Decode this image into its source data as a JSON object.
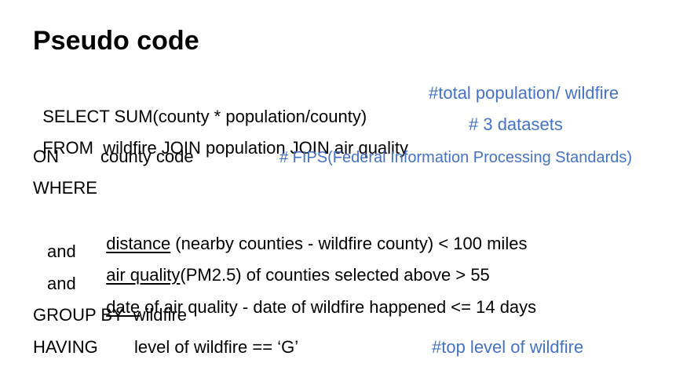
{
  "title": "Pseudo code",
  "lines": {
    "select": {
      "text": "SELECT SUM(county * population/county)",
      "comment": "#total population/ wildfire"
    },
    "from": {
      "text": "FROM  wildfire JOIN population JOIN air quality",
      "comment": "# 3 datasets"
    },
    "on": {
      "keyword": "ON",
      "text": "county code",
      "comment": "# FIPS(Federal Information Processing Standards)"
    },
    "where": {
      "keyword": "WHERE"
    },
    "cond1": {
      "underlined": "distance",
      "rest": " (nearby counties - wildfire county) < 100 miles"
    },
    "cond2": {
      "prefix": "and",
      "underlined": "air quality",
      "rest": "(PM2.5) of counties selected above > 55"
    },
    "cond3": {
      "prefix": "and",
      "underlined": "date",
      "rest": " of air quality - date of wildfire happened <= 14 days"
    },
    "group_by": {
      "text": "GROUP BY  wildfire"
    },
    "having": {
      "keyword": "HAVING",
      "text": "level of wildfire == ‘G’",
      "comment": "#top level of wildfire"
    }
  },
  "colors": {
    "comment": "#4472c4",
    "text": "#000000",
    "background": "#ffffff"
  }
}
